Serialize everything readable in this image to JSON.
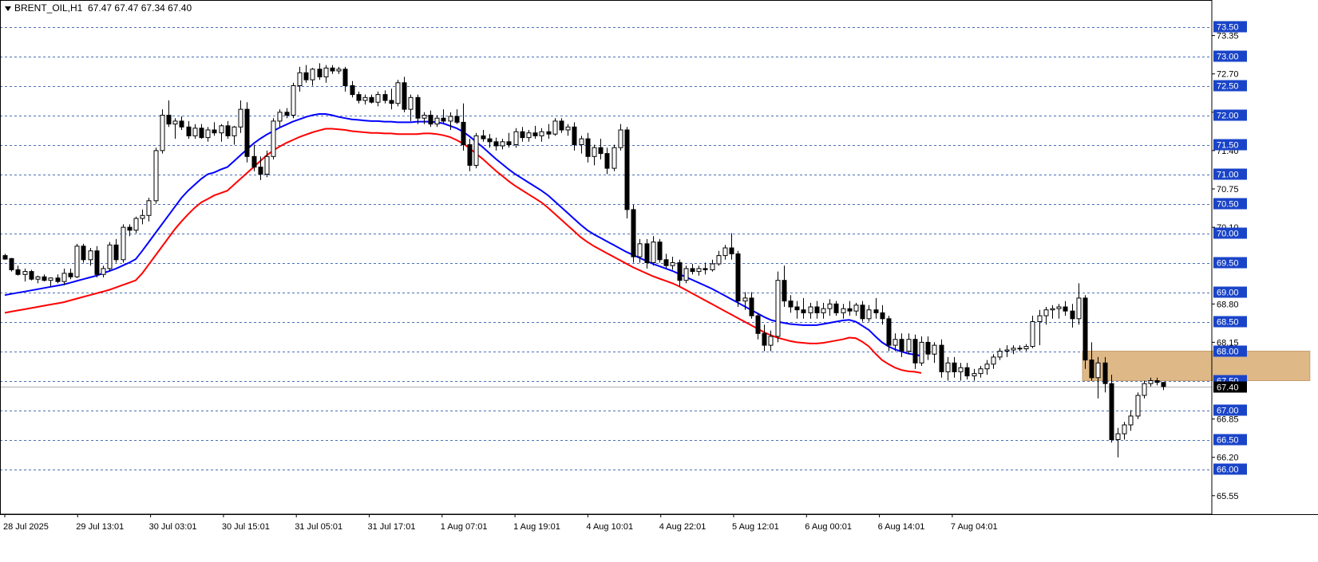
{
  "window": {
    "symbol": "BRENT_OIL,H1",
    "ohlc": "67.47 67.47 67.34 67.40"
  },
  "chart_data": {
    "type": "candlestick",
    "symbol": "BRENT_OIL",
    "timeframe": "H1",
    "ylim": [
      65.3,
      73.7
    ],
    "grid": true,
    "grid_levels": [
      73.5,
      73.0,
      72.5,
      72.0,
      71.5,
      71.0,
      70.5,
      70.0,
      69.5,
      69.0,
      68.5,
      68.0,
      67.5,
      67.0,
      66.5,
      66.0
    ],
    "grid_labels": [
      "73.50",
      "73.00",
      "72.50",
      "72.00",
      "71.50",
      "71.00",
      "70.50",
      "70.00",
      "69.50",
      "69.00",
      "68.50",
      "68.00",
      "67.50",
      "67.00",
      "66.50",
      "66.00"
    ],
    "axis_ticks": [
      73.35,
      72.7,
      72.05,
      71.4,
      70.75,
      70.1,
      68.8,
      68.15,
      66.85,
      66.2,
      65.55
    ],
    "axis_tick_labels": [
      "73.35",
      "72.70",
      "72.05",
      "71.40",
      "70.75",
      "70.10",
      "68.80",
      "68.15",
      "66.85",
      "66.20",
      "65.55"
    ],
    "current_price": 67.4,
    "current_price_label": "67.40",
    "x_labels": [
      "28 Jul 2025",
      "29 Jul 13:01",
      "30 Jul 03:01",
      "30 Jul 15:01",
      "31 Jul 05:01",
      "31 Jul 17:01",
      "1 Aug 07:01",
      "1 Aug 19:01",
      "4 Aug 10:01",
      "4 Aug 22:01",
      "5 Aug 12:01",
      "6 Aug 00:01",
      "6 Aug 14:01",
      "7 Aug 04:01"
    ],
    "zone": {
      "low": 67.5,
      "high": 68.0,
      "start_bar": 165,
      "end_bar": 199,
      "color": "#DEB887"
    },
    "ma_fast_color": "#0000FF",
    "ma_slow_color": "#FF0000",
    "ma_fast": [
      68.95,
      68.97,
      68.99,
      69.01,
      69.03,
      69.05,
      69.07,
      69.09,
      69.11,
      69.13,
      69.16,
      69.19,
      69.22,
      69.25,
      69.28,
      69.32,
      69.36,
      69.4,
      69.45,
      69.5,
      69.56,
      69.7,
      69.85,
      70.0,
      70.15,
      70.3,
      70.45,
      70.6,
      70.72,
      70.82,
      70.92,
      71.0,
      71.03,
      71.08,
      71.12,
      71.22,
      71.32,
      71.42,
      71.52,
      71.6,
      71.67,
      71.73,
      71.79,
      71.84,
      71.89,
      71.93,
      71.97,
      72.0,
      72.02,
      72.02,
      72.0,
      71.97,
      71.95,
      71.93,
      71.92,
      71.91,
      71.9,
      71.9,
      71.89,
      71.89,
      71.88,
      71.88,
      71.88,
      71.89,
      71.89,
      71.89,
      71.88,
      71.86,
      71.82,
      71.78,
      71.72,
      71.64,
      71.55,
      71.46,
      71.36,
      71.26,
      71.17,
      71.08,
      71.0,
      70.93,
      70.86,
      70.79,
      70.72,
      70.64,
      70.54,
      70.44,
      70.34,
      70.24,
      70.14,
      70.05,
      69.98,
      69.92,
      69.86,
      69.8,
      69.74,
      69.68,
      69.63,
      69.58,
      69.53,
      69.48,
      69.44,
      69.4,
      69.36,
      69.31,
      69.26,
      69.21,
      69.16,
      69.11,
      69.06,
      69.0,
      68.94,
      68.88,
      68.82,
      68.76,
      68.7,
      68.64,
      68.58,
      68.53,
      68.5,
      68.48,
      68.46,
      68.45,
      68.44,
      68.44,
      68.44,
      68.46,
      68.48,
      68.5,
      68.52,
      68.53,
      68.5,
      68.43,
      68.36,
      68.25,
      68.15,
      68.08,
      68.03,
      67.99,
      67.96,
      67.94,
      67.92
    ],
    "ma_slow": [
      68.65,
      68.67,
      68.69,
      68.71,
      68.73,
      68.75,
      68.77,
      68.79,
      68.81,
      68.83,
      68.86,
      68.89,
      68.92,
      68.95,
      68.98,
      69.01,
      69.04,
      69.08,
      69.12,
      69.16,
      69.2,
      69.32,
      69.47,
      69.62,
      69.77,
      69.92,
      70.07,
      70.2,
      70.32,
      70.43,
      70.52,
      70.58,
      70.64,
      70.68,
      70.72,
      70.82,
      70.92,
      71.02,
      71.12,
      71.22,
      71.32,
      71.4,
      71.47,
      71.53,
      71.58,
      71.63,
      71.67,
      71.71,
      71.74,
      71.77,
      71.77,
      71.76,
      71.75,
      71.73,
      71.72,
      71.71,
      71.7,
      71.7,
      71.69,
      71.69,
      71.68,
      71.68,
      71.68,
      71.68,
      71.69,
      71.69,
      71.68,
      71.66,
      71.63,
      71.58,
      71.52,
      71.44,
      71.35,
      71.26,
      71.16,
      71.06,
      70.97,
      70.88,
      70.8,
      70.73,
      70.66,
      70.59,
      70.52,
      70.43,
      70.33,
      70.23,
      70.13,
      70.03,
      69.93,
      69.85,
      69.78,
      69.72,
      69.66,
      69.6,
      69.54,
      69.48,
      69.42,
      69.37,
      69.32,
      69.27,
      69.23,
      69.19,
      69.15,
      69.1,
      69.04,
      68.98,
      68.92,
      68.86,
      68.8,
      68.74,
      68.68,
      68.62,
      68.56,
      68.5,
      68.44,
      68.38,
      68.32,
      68.27,
      68.23,
      68.2,
      68.17,
      68.15,
      68.14,
      68.13,
      68.13,
      68.14,
      68.16,
      68.18,
      68.2,
      68.23,
      68.22,
      68.16,
      68.08,
      67.96,
      67.85,
      67.78,
      67.72,
      67.68,
      67.66,
      67.65,
      67.63
    ],
    "candles": [
      [
        69.62,
        69.65,
        69.55,
        69.56
      ],
      [
        69.57,
        69.58,
        69.35,
        69.38
      ],
      [
        69.38,
        69.45,
        69.28,
        69.3
      ],
      [
        69.3,
        69.4,
        69.18,
        69.35
      ],
      [
        69.35,
        69.38,
        69.2,
        69.22
      ],
      [
        69.22,
        69.28,
        69.15,
        69.26
      ],
      [
        69.26,
        69.3,
        69.18,
        69.2
      ],
      [
        69.2,
        69.25,
        69.1,
        69.24
      ],
      [
        69.24,
        69.3,
        69.15,
        69.18
      ],
      [
        69.18,
        69.4,
        69.12,
        69.32
      ],
      [
        69.32,
        69.4,
        69.22,
        69.26
      ],
      [
        69.26,
        69.82,
        69.24,
        69.78
      ],
      [
        69.78,
        69.82,
        69.5,
        69.55
      ],
      [
        69.55,
        69.75,
        69.45,
        69.7
      ],
      [
        69.7,
        69.78,
        69.25,
        69.3
      ],
      [
        69.3,
        69.45,
        69.25,
        69.4
      ],
      [
        69.4,
        69.85,
        69.35,
        69.8
      ],
      [
        69.8,
        69.9,
        69.5,
        69.55
      ],
      [
        69.55,
        70.15,
        69.5,
        70.1
      ],
      [
        70.1,
        70.15,
        69.95,
        70.05
      ],
      [
        70.05,
        70.28,
        70.0,
        70.25
      ],
      [
        70.25,
        70.4,
        70.15,
        70.3
      ],
      [
        70.3,
        70.6,
        70.2,
        70.55
      ],
      [
        70.55,
        71.45,
        70.5,
        71.4
      ],
      [
        71.4,
        72.1,
        71.35,
        72.0
      ],
      [
        72.0,
        72.25,
        71.8,
        71.85
      ],
      [
        71.85,
        71.95,
        71.6,
        71.9
      ],
      [
        71.9,
        71.98,
        71.75,
        71.8
      ],
      [
        71.8,
        71.9,
        71.6,
        71.65
      ],
      [
        71.65,
        71.85,
        71.6,
        71.78
      ],
      [
        71.78,
        71.85,
        71.6,
        71.62
      ],
      [
        71.62,
        71.8,
        71.55,
        71.75
      ],
      [
        71.75,
        71.88,
        71.65,
        71.7
      ],
      [
        71.7,
        71.85,
        71.55,
        71.82
      ],
      [
        71.82,
        71.9,
        71.6,
        71.65
      ],
      [
        71.65,
        71.82,
        71.5,
        71.8
      ],
      [
        71.8,
        72.25,
        71.7,
        72.1
      ],
      [
        72.1,
        72.22,
        71.2,
        71.3
      ],
      [
        71.3,
        71.5,
        71.05,
        71.12
      ],
      [
        71.12,
        71.3,
        70.9,
        71.0
      ],
      [
        71.0,
        71.4,
        70.95,
        71.3
      ],
      [
        71.3,
        71.95,
        71.25,
        71.9
      ],
      [
        71.9,
        72.1,
        71.8,
        72.05
      ],
      [
        72.05,
        72.12,
        71.95,
        72.0
      ],
      [
        72.0,
        72.55,
        71.95,
        72.5
      ],
      [
        72.5,
        72.82,
        72.4,
        72.72
      ],
      [
        72.72,
        72.85,
        72.55,
        72.6
      ],
      [
        72.6,
        72.8,
        72.5,
        72.78
      ],
      [
        72.78,
        72.88,
        72.6,
        72.65
      ],
      [
        72.65,
        72.85,
        72.55,
        72.8
      ],
      [
        72.8,
        72.85,
        72.7,
        72.75
      ],
      [
        72.75,
        72.82,
        72.7,
        72.78
      ],
      [
        72.78,
        72.82,
        72.4,
        72.5
      ],
      [
        72.5,
        72.58,
        72.3,
        72.35
      ],
      [
        72.35,
        72.4,
        72.2,
        72.25
      ],
      [
        72.25,
        72.35,
        72.18,
        72.3
      ],
      [
        72.3,
        72.35,
        72.2,
        72.22
      ],
      [
        72.22,
        72.4,
        72.15,
        72.35
      ],
      [
        72.35,
        72.42,
        72.2,
        72.25
      ],
      [
        72.25,
        72.45,
        72.1,
        72.2
      ],
      [
        72.2,
        72.6,
        72.15,
        72.55
      ],
      [
        72.55,
        72.65,
        72.05,
        72.1
      ],
      [
        72.1,
        72.35,
        71.9,
        72.3
      ],
      [
        72.3,
        72.35,
        71.85,
        71.95
      ],
      [
        71.95,
        72.05,
        71.85,
        72.0
      ],
      [
        72.0,
        72.08,
        71.8,
        71.85
      ],
      [
        71.85,
        72.0,
        71.8,
        71.95
      ],
      [
        71.95,
        72.1,
        71.85,
        71.9
      ],
      [
        71.9,
        72.05,
        71.75,
        71.98
      ],
      [
        71.98,
        72.1,
        71.85,
        71.88
      ],
      [
        71.88,
        72.2,
        71.4,
        71.5
      ],
      [
        71.5,
        71.6,
        71.05,
        71.15
      ],
      [
        71.15,
        71.7,
        71.1,
        71.65
      ],
      [
        71.65,
        71.75,
        71.55,
        71.6
      ],
      [
        71.6,
        71.68,
        71.45,
        71.55
      ],
      [
        71.55,
        71.62,
        71.4,
        71.48
      ],
      [
        71.48,
        71.6,
        71.42,
        71.55
      ],
      [
        71.55,
        71.7,
        71.45,
        71.5
      ],
      [
        71.5,
        71.78,
        71.45,
        71.72
      ],
      [
        71.72,
        71.8,
        71.55,
        71.62
      ],
      [
        71.62,
        71.75,
        71.55,
        71.7
      ],
      [
        71.7,
        71.82,
        71.6,
        71.65
      ],
      [
        71.65,
        71.78,
        71.55,
        71.72
      ],
      [
        71.72,
        71.85,
        71.6,
        71.68
      ],
      [
        71.68,
        71.95,
        71.65,
        71.9
      ],
      [
        71.9,
        71.95,
        71.7,
        71.75
      ],
      [
        71.75,
        71.85,
        71.65,
        71.8
      ],
      [
        71.8,
        71.88,
        71.4,
        71.5
      ],
      [
        71.5,
        71.65,
        71.35,
        71.6
      ],
      [
        71.6,
        71.7,
        71.2,
        71.3
      ],
      [
        71.3,
        71.5,
        71.15,
        71.45
      ],
      [
        71.45,
        71.6,
        71.25,
        71.35
      ],
      [
        71.35,
        71.45,
        71.0,
        71.1
      ],
      [
        71.1,
        71.5,
        71.05,
        71.45
      ],
      [
        71.45,
        71.85,
        71.4,
        71.75
      ],
      [
        71.75,
        71.8,
        70.25,
        70.4
      ],
      [
        70.4,
        70.48,
        69.5,
        69.6
      ],
      [
        69.6,
        69.9,
        69.5,
        69.82
      ],
      [
        69.82,
        69.9,
        69.4,
        69.5
      ],
      [
        69.5,
        69.95,
        69.45,
        69.85
      ],
      [
        69.85,
        69.9,
        69.5,
        69.55
      ],
      [
        69.55,
        69.65,
        69.4,
        69.45
      ],
      [
        69.45,
        69.6,
        69.38,
        69.5
      ],
      [
        69.5,
        69.55,
        69.1,
        69.2
      ],
      [
        69.2,
        69.45,
        69.15,
        69.4
      ],
      [
        69.4,
        69.48,
        69.3,
        69.35
      ],
      [
        69.35,
        69.45,
        69.28,
        69.4
      ],
      [
        69.4,
        69.5,
        69.3,
        69.38
      ],
      [
        69.38,
        69.55,
        69.35,
        69.48
      ],
      [
        69.48,
        69.7,
        69.45,
        69.62
      ],
      [
        69.62,
        69.8,
        69.55,
        69.75
      ],
      [
        69.75,
        70.0,
        69.55,
        69.65
      ],
      [
        69.65,
        69.7,
        68.75,
        68.85
      ],
      [
        68.85,
        69.0,
        68.7,
        68.9
      ],
      [
        68.9,
        69.0,
        68.55,
        68.6
      ],
      [
        68.6,
        68.65,
        68.2,
        68.3
      ],
      [
        68.3,
        68.45,
        68.0,
        68.1
      ],
      [
        68.1,
        68.35,
        68.0,
        68.25
      ],
      [
        68.25,
        69.35,
        68.15,
        69.2
      ],
      [
        69.2,
        69.45,
        68.75,
        68.85
      ],
      [
        68.85,
        68.95,
        68.65,
        68.75
      ],
      [
        68.75,
        68.85,
        68.55,
        68.7
      ],
      [
        68.7,
        68.9,
        68.55,
        68.65
      ],
      [
        68.65,
        68.82,
        68.55,
        68.75
      ],
      [
        68.75,
        68.85,
        68.55,
        68.65
      ],
      [
        68.65,
        68.82,
        68.55,
        68.72
      ],
      [
        68.72,
        68.88,
        68.6,
        68.8
      ],
      [
        68.8,
        68.85,
        68.6,
        68.65
      ],
      [
        68.65,
        68.8,
        68.55,
        68.72
      ],
      [
        68.72,
        68.85,
        68.6,
        68.68
      ],
      [
        68.68,
        68.82,
        68.6,
        68.78
      ],
      [
        68.78,
        68.85,
        68.5,
        68.55
      ],
      [
        68.55,
        68.78,
        68.5,
        68.7
      ],
      [
        68.7,
        68.9,
        68.55,
        68.65
      ],
      [
        68.65,
        68.78,
        68.45,
        68.55
      ],
      [
        68.55,
        68.6,
        68.0,
        68.1
      ],
      [
        68.1,
        68.3,
        68.0,
        68.2
      ],
      [
        68.2,
        68.3,
        67.9,
        68.0
      ],
      [
        68.0,
        68.3,
        67.95,
        68.2
      ],
      [
        68.2,
        68.28,
        67.7,
        67.8
      ],
      [
        67.8,
        68.25,
        67.75,
        68.15
      ],
      [
        68.15,
        68.25,
        67.85,
        67.95
      ],
      [
        67.95,
        68.15,
        67.8,
        68.1
      ],
      [
        68.1,
        68.2,
        67.55,
        67.65
      ],
      [
        67.65,
        67.9,
        67.5,
        67.8
      ],
      [
        67.8,
        67.9,
        67.55,
        67.65
      ],
      [
        67.65,
        67.8,
        67.5,
        67.72
      ],
      [
        67.72,
        67.8,
        67.52,
        67.58
      ],
      [
        67.58,
        67.7,
        67.5,
        67.62
      ],
      [
        67.62,
        67.75,
        67.55,
        67.7
      ],
      [
        67.7,
        67.85,
        67.6,
        67.78
      ],
      [
        67.78,
        67.95,
        67.7,
        67.9
      ],
      [
        67.9,
        68.05,
        67.85,
        68.0
      ],
      [
        68.0,
        68.1,
        67.9,
        68.02
      ],
      [
        68.02,
        68.1,
        67.95,
        68.05
      ],
      [
        68.05,
        68.1,
        68.0,
        68.04
      ],
      [
        68.04,
        68.12,
        68.0,
        68.08
      ],
      [
        68.08,
        68.6,
        68.05,
        68.5
      ],
      [
        68.5,
        68.7,
        68.1,
        68.6
      ],
      [
        68.6,
        68.75,
        68.45,
        68.7
      ],
      [
        68.7,
        68.78,
        68.55,
        68.72
      ],
      [
        68.72,
        68.8,
        68.55,
        68.75
      ],
      [
        68.75,
        68.85,
        68.6,
        68.68
      ],
      [
        68.68,
        68.8,
        68.4,
        68.55
      ],
      [
        68.55,
        69.15,
        68.45,
        68.9
      ],
      [
        68.9,
        68.95,
        67.7,
        67.85
      ],
      [
        67.85,
        68.15,
        67.5,
        67.55
      ],
      [
        67.55,
        67.9,
        67.2,
        67.8
      ],
      [
        67.8,
        67.9,
        67.3,
        67.45
      ],
      [
        67.45,
        67.6,
        66.45,
        66.5
      ],
      [
        66.5,
        66.7,
        66.2,
        66.6
      ],
      [
        66.6,
        66.8,
        66.5,
        66.75
      ],
      [
        66.75,
        67.0,
        66.65,
        66.9
      ],
      [
        66.9,
        67.3,
        66.85,
        67.25
      ],
      [
        67.25,
        67.5,
        67.2,
        67.45
      ],
      [
        67.45,
        67.55,
        67.4,
        67.5
      ],
      [
        67.5,
        67.55,
        67.42,
        67.47
      ],
      [
        67.47,
        67.47,
        67.34,
        67.4
      ]
    ]
  }
}
